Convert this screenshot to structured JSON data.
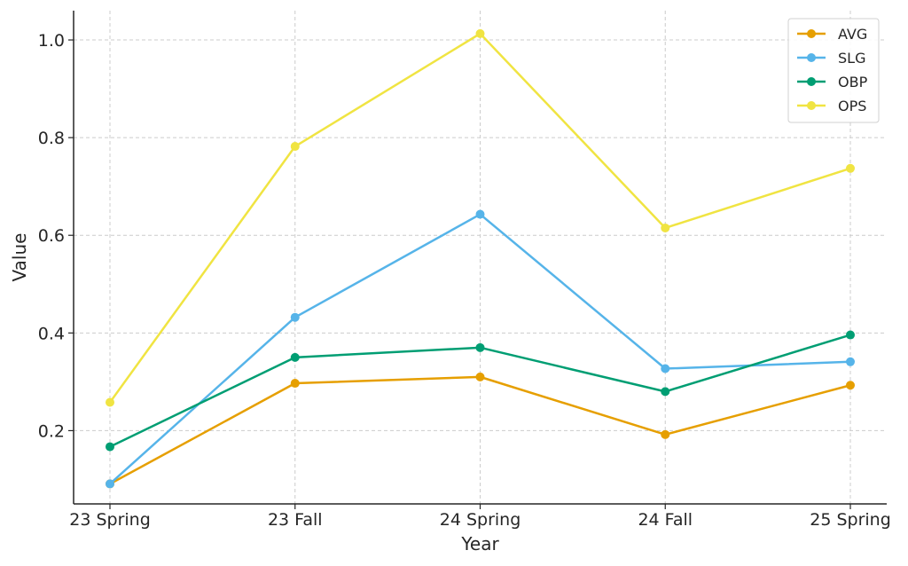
{
  "chart_data": {
    "type": "line",
    "title": "",
    "xlabel": "Year",
    "ylabel": "Value",
    "categories": [
      "23 Spring",
      "23 Fall",
      "24 Spring",
      "24 Fall",
      "25 Spring"
    ],
    "yticks": [
      "0.2",
      "0.4",
      "0.6",
      "0.8",
      "1.0"
    ],
    "ylim": [
      0.05,
      1.06
    ],
    "grid": true,
    "legend_position": "top-right",
    "series": [
      {
        "name": "AVG",
        "color": "#E69F00",
        "values": [
          0.091,
          0.297,
          0.31,
          0.192,
          0.293
        ]
      },
      {
        "name": "SLG",
        "color": "#56B4E9",
        "values": [
          0.091,
          0.432,
          0.643,
          0.327,
          0.341
        ]
      },
      {
        "name": "OBP",
        "color": "#009E73",
        "values": [
          0.167,
          0.35,
          0.37,
          0.28,
          0.396
        ]
      },
      {
        "name": "OPS",
        "color": "#F0E442",
        "values": [
          0.258,
          0.782,
          1.013,
          0.615,
          0.737
        ]
      }
    ]
  }
}
